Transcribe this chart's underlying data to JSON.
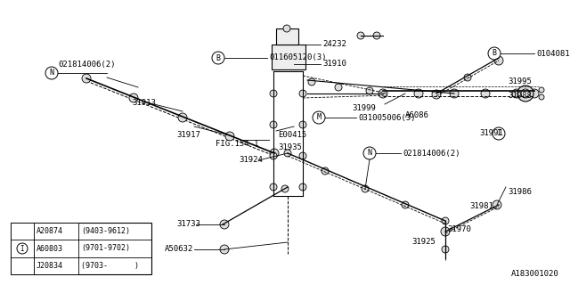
{
  "bg_color": "#ffffff",
  "line_color": "#000000",
  "title_code": "A183001020",
  "legend_rows": [
    {
      "code": "A20874",
      "range": "(9403-9612)",
      "circle_i": false
    },
    {
      "code": "A60803",
      "range": "(9701-9702)",
      "circle_i": true
    },
    {
      "code": "J20834",
      "range": "(9703-      )",
      "circle_i": false
    }
  ],
  "fig_w": 6.4,
  "fig_h": 3.2,
  "dpi": 100
}
